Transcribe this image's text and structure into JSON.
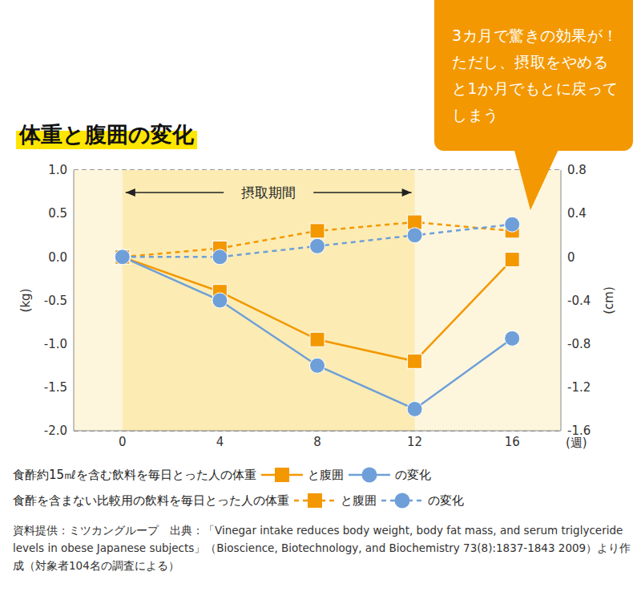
{
  "chart_data": {
    "type": "line",
    "title": "体重と腹囲の変化",
    "x": [
      0,
      4,
      8,
      12,
      16
    ],
    "xlim": [
      -2,
      18
    ],
    "xticks": [
      0,
      4,
      8,
      12,
      16
    ],
    "xlabel": "(週)",
    "ylabel": "(kg)",
    "y2label": "(cm)",
    "ylim": [
      -2.0,
      1.0
    ],
    "yticks": [
      {
        "value": -2.0,
        "label": "-2.0"
      },
      {
        "value": -1.5,
        "label": "-1.5"
      },
      {
        "value": -1.0,
        "label": "-1.0"
      },
      {
        "value": -0.5,
        "label": "-0.5"
      },
      {
        "value": 0.0,
        "label": "0.0"
      },
      {
        "value": 0.5,
        "label": "0.5"
      },
      {
        "value": 1.0,
        "label": "1.0"
      }
    ],
    "y2lim": [
      -1.6,
      0.8
    ],
    "y2ticks": [
      -1.6,
      -1.2,
      -0.8,
      -0.4,
      0,
      0.4,
      0.8
    ],
    "grid": true,
    "series": [
      {
        "name": "食酢約15㎖を含む飲料を毎日とった人の体重",
        "color": "#f39800",
        "marker": "square",
        "line_style": "solid",
        "values": [
          0.0,
          -0.4,
          -0.95,
          -1.2,
          -0.03
        ]
      },
      {
        "name": "と腹囲",
        "color": "#6f9fd8",
        "marker": "circle",
        "line_style": "solid",
        "axis": "y2",
        "values": [
          0.0,
          -0.4,
          -1.0,
          -1.4,
          -0.75
        ]
      },
      {
        "name": "食酢を含まない比較用の飲料を毎日とった人の体重",
        "color": "#f39800",
        "marker": "square",
        "line_style": "dashed",
        "values": [
          0.0,
          0.1,
          0.3,
          0.4,
          0.3
        ]
      },
      {
        "name": "と腹囲",
        "color": "#6f9fd8",
        "marker": "circle",
        "line_style": "dashed",
        "axis": "y2",
        "values": [
          0.0,
          0.0,
          0.1,
          0.2,
          0.3
        ]
      }
    ],
    "legend_suffix": "の変化",
    "intake_period": {
      "label": "摂取期間",
      "x": [
        0,
        12
      ]
    },
    "annotation": "3カ月で驚きの効果が！ ただし、摂取をやめると1か月でもとに戻ってしまう",
    "source": "資料提供：ミツカングループ　出典：「Vinegar intake reduces body weight, body fat mass, and serum triglyceride levels in obese Japanese subjects」（Bioscience, Biotechnology, and Biochemistry 73(8):1837-1843 2009）より作成（対象者104名の調査による）"
  }
}
